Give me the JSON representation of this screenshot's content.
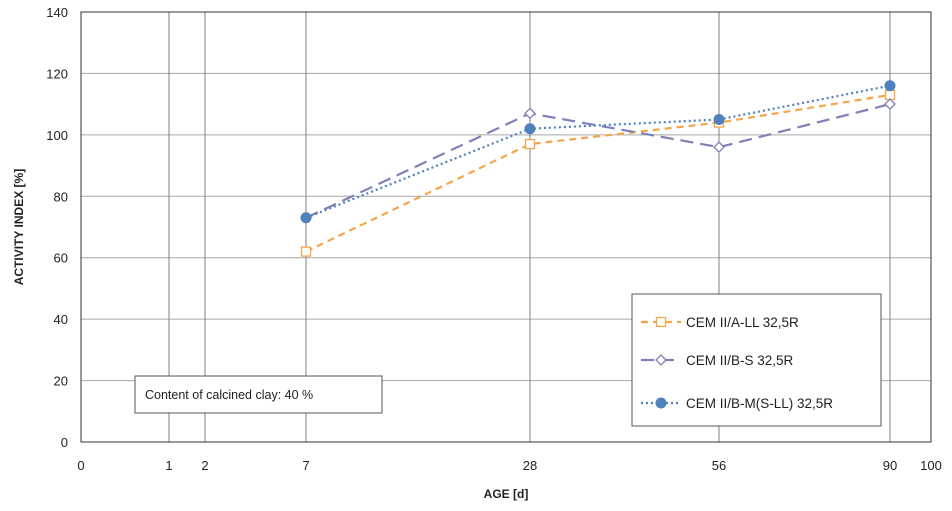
{
  "chart_data": {
    "type": "line",
    "xlabel": "AGE [d]",
    "ylabel": "ACTIVITY INDEX [%]",
    "x_ticks": [
      0,
      1,
      2,
      7,
      28,
      56,
      90,
      100
    ],
    "y_ticks": [
      0,
      20,
      40,
      60,
      80,
      100,
      120,
      140
    ],
    "ylim": [
      0,
      140
    ],
    "grid": true,
    "legend_position": "bottom-right",
    "annotation": "Content of calcined clay: 40 %",
    "x": [
      7,
      28,
      56,
      90
    ],
    "series": [
      {
        "name": "CEM II/A-LL 32,5R",
        "values": [
          62,
          97,
          104,
          113
        ],
        "color": "#f4a64b",
        "line": "dashed",
        "marker": "open-square"
      },
      {
        "name": "CEM II/B-S 32,5R",
        "values": [
          73,
          107,
          96,
          110
        ],
        "color": "#8080b8",
        "line": "long-dashed",
        "marker": "open-diamond"
      },
      {
        "name": "CEM II/B-M(S-LL) 32,5R",
        "values": [
          73,
          102,
          105,
          116
        ],
        "color": "#4f81bd",
        "line": "dotted",
        "marker": "filled-circle"
      }
    ]
  }
}
